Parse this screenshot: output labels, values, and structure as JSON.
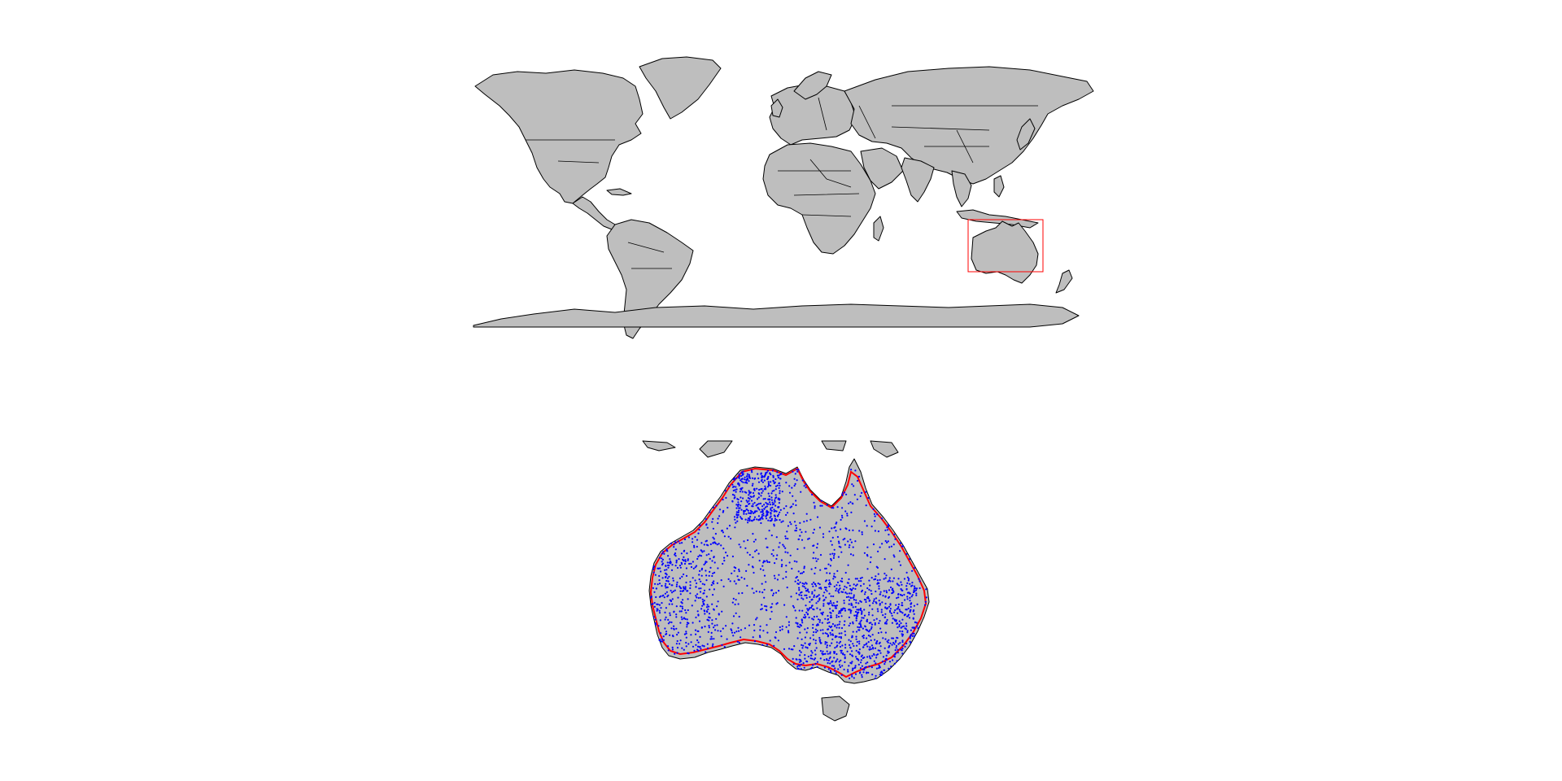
{
  "colors": {
    "land": "#bebebe",
    "outline": "#000000",
    "highlight": "#ff0000",
    "points": "#0000ff",
    "background": "#ffffff"
  },
  "world_map": {
    "highlight_extent": {
      "lon_min": 112,
      "lon_max": 155,
      "lat_min": -45,
      "lat_max": -10
    }
  },
  "australia_map": {
    "range_outline_color": "red",
    "occurrence_point_color": "blue",
    "occurrence_density": "high"
  }
}
